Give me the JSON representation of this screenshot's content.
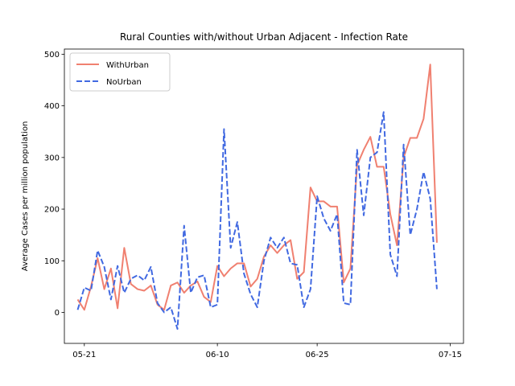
{
  "chart_data": {
    "type": "line",
    "title": "Rural Counties with/without Urban Adjacent - Infection Rate",
    "xlabel": "",
    "ylabel": "Average Cases per million population",
    "x_start": "2020-05-20",
    "x_tick_labels": [
      {
        "label": "05-21",
        "date": "2020-05-21"
      },
      {
        "label": "06-10",
        "date": "2020-06-10"
      },
      {
        "label": "06-25",
        "date": "2020-06-25"
      },
      {
        "label": "07-15",
        "date": "2020-07-15"
      }
    ],
    "y_ticks": [
      0,
      100,
      200,
      300,
      400,
      500
    ],
    "xlim": [
      "2020-05-18",
      "2020-07-17"
    ],
    "ylim": [
      -60,
      510
    ],
    "grid": false,
    "legend_position": "upper-left",
    "series": [
      {
        "name": "WithUrban",
        "color": "#f08070",
        "style": "solid",
        "values": [
          25,
          5,
          50,
          105,
          45,
          85,
          8,
          125,
          55,
          45,
          42,
          52,
          15,
          5,
          52,
          58,
          38,
          52,
          60,
          30,
          20,
          90,
          70,
          85,
          95,
          95,
          50,
          65,
          108,
          130,
          115,
          130,
          140,
          65,
          78,
          242,
          215,
          215,
          205,
          205,
          58,
          85,
          285,
          315,
          340,
          282,
          282,
          190,
          130,
          300,
          338,
          338,
          375,
          480,
          135
        ]
      },
      {
        "name": "NoUrban",
        "color": "#4169e1",
        "style": "dashed",
        "values": [
          5,
          48,
          42,
          120,
          88,
          25,
          90,
          38,
          65,
          72,
          62,
          88,
          18,
          0,
          10,
          -32,
          168,
          38,
          68,
          72,
          10,
          15,
          355,
          125,
          175,
          75,
          35,
          10,
          100,
          145,
          125,
          145,
          95,
          92,
          10,
          45,
          225,
          182,
          158,
          190,
          18,
          15,
          315,
          188,
          300,
          310,
          388,
          112,
          70,
          325,
          150,
          200,
          272,
          220,
          45
        ]
      }
    ]
  }
}
